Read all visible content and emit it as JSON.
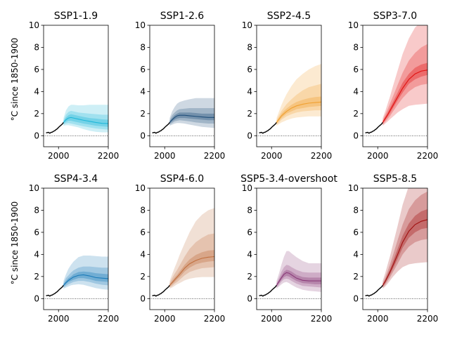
{
  "ylabel": "°C since 1850-1900",
  "chart_data": {
    "type": "line",
    "xlim": [
      1940,
      2200
    ],
    "ylim": [
      -1,
      10
    ],
    "xticks": [
      2000,
      2200
    ],
    "yticks": [
      0,
      2,
      4,
      6,
      8,
      10
    ],
    "zero_reference_line": true,
    "historical": {
      "x": [
        1950,
        1955,
        1960,
        1965,
        1970,
        1975,
        1980,
        1985,
        1990,
        1995,
        2000,
        2005,
        2010,
        2015,
        2020
      ],
      "y": [
        0.25,
        0.28,
        0.3,
        0.22,
        0.3,
        0.32,
        0.4,
        0.45,
        0.55,
        0.62,
        0.75,
        0.85,
        0.95,
        1.05,
        1.2
      ]
    },
    "panels": [
      {
        "title": "SSP1-1.9",
        "color": "#1fb7d8",
        "x": [
          2020,
          2030,
          2040,
          2050,
          2060,
          2080,
          2100,
          2125,
          2150,
          2175,
          2200
        ],
        "median": [
          1.2,
          1.45,
          1.6,
          1.65,
          1.6,
          1.5,
          1.4,
          1.3,
          1.2,
          1.12,
          1.1
        ],
        "p33": [
          1.1,
          1.25,
          1.35,
          1.35,
          1.3,
          1.2,
          1.1,
          1.0,
          0.9,
          0.85,
          0.8
        ],
        "p67": [
          1.3,
          1.65,
          1.85,
          1.95,
          1.9,
          1.8,
          1.7,
          1.6,
          1.55,
          1.48,
          1.45
        ],
        "p17": [
          1.0,
          1.1,
          1.15,
          1.1,
          1.05,
          0.95,
          0.85,
          0.75,
          0.65,
          0.6,
          0.55
        ],
        "p83": [
          1.4,
          1.9,
          2.15,
          2.25,
          2.2,
          2.1,
          2.05,
          2.0,
          1.95,
          1.9,
          1.9
        ],
        "p05": [
          0.9,
          0.95,
          0.95,
          0.9,
          0.85,
          0.75,
          0.6,
          0.45,
          0.35,
          0.3,
          0.3
        ],
        "p95": [
          1.6,
          2.3,
          2.65,
          2.8,
          2.8,
          2.75,
          2.75,
          2.8,
          2.8,
          2.8,
          2.8
        ]
      },
      {
        "title": "SSP1-2.6",
        "color": "#1f4e79",
        "x": [
          2020,
          2030,
          2040,
          2050,
          2060,
          2080,
          2100,
          2125,
          2150,
          2175,
          2200
        ],
        "median": [
          1.2,
          1.45,
          1.65,
          1.8,
          1.85,
          1.85,
          1.8,
          1.75,
          1.7,
          1.65,
          1.65
        ],
        "p33": [
          1.1,
          1.3,
          1.45,
          1.55,
          1.6,
          1.6,
          1.55,
          1.5,
          1.45,
          1.4,
          1.4
        ],
        "p67": [
          1.3,
          1.6,
          1.85,
          2.0,
          2.1,
          2.1,
          2.1,
          2.05,
          2.0,
          2.0,
          2.0
        ],
        "p17": [
          1.0,
          1.15,
          1.3,
          1.35,
          1.4,
          1.35,
          1.3,
          1.2,
          1.15,
          1.1,
          1.1
        ],
        "p83": [
          1.4,
          1.85,
          2.1,
          2.3,
          2.4,
          2.45,
          2.5,
          2.5,
          2.5,
          2.5,
          2.5
        ],
        "p05": [
          0.9,
          1.0,
          1.1,
          1.15,
          1.15,
          1.1,
          1.0,
          0.9,
          0.8,
          0.75,
          0.7
        ],
        "p95": [
          1.6,
          2.2,
          2.6,
          2.9,
          3.05,
          3.2,
          3.3,
          3.4,
          3.4,
          3.4,
          3.4
        ]
      },
      {
        "title": "SSP2-4.5",
        "color": "#f0a030",
        "x": [
          2020,
          2030,
          2040,
          2050,
          2060,
          2080,
          2100,
          2125,
          2150,
          2175,
          2200
        ],
        "median": [
          1.2,
          1.5,
          1.8,
          2.0,
          2.2,
          2.5,
          2.7,
          2.85,
          2.95,
          3.0,
          3.05
        ],
        "p33": [
          1.1,
          1.35,
          1.6,
          1.8,
          2.0,
          2.2,
          2.4,
          2.5,
          2.6,
          2.65,
          2.7
        ],
        "p67": [
          1.3,
          1.65,
          2.0,
          2.25,
          2.45,
          2.8,
          3.05,
          3.25,
          3.4,
          3.5,
          3.55
        ],
        "p17": [
          1.0,
          1.2,
          1.45,
          1.6,
          1.75,
          1.95,
          2.1,
          2.2,
          2.25,
          2.3,
          2.3
        ],
        "p83": [
          1.4,
          1.85,
          2.25,
          2.55,
          2.85,
          3.3,
          3.7,
          4.1,
          4.4,
          4.55,
          4.7
        ],
        "p05": [
          0.9,
          1.05,
          1.2,
          1.3,
          1.4,
          1.55,
          1.65,
          1.7,
          1.75,
          1.75,
          1.75
        ],
        "p95": [
          1.6,
          2.2,
          2.8,
          3.3,
          3.75,
          4.5,
          5.1,
          5.6,
          6.0,
          6.3,
          6.5
        ]
      },
      {
        "title": "SSP3-7.0",
        "color": "#e01010",
        "x": [
          2020,
          2030,
          2040,
          2050,
          2060,
          2080,
          2100,
          2125,
          2150,
          2175,
          2200
        ],
        "median": [
          1.2,
          1.55,
          1.9,
          2.3,
          2.7,
          3.5,
          4.3,
          5.1,
          5.6,
          5.85,
          5.95
        ],
        "p33": [
          1.1,
          1.4,
          1.7,
          2.05,
          2.45,
          3.2,
          3.9,
          4.7,
          5.1,
          5.35,
          5.5
        ],
        "p67": [
          1.3,
          1.7,
          2.1,
          2.55,
          3.0,
          3.9,
          4.8,
          5.6,
          6.15,
          6.45,
          6.6
        ],
        "p17": [
          1.0,
          1.25,
          1.5,
          1.8,
          2.15,
          2.8,
          3.4,
          4.0,
          4.4,
          4.6,
          4.7
        ],
        "p83": [
          1.4,
          1.9,
          2.4,
          2.95,
          3.5,
          4.6,
          5.7,
          6.8,
          7.5,
          8.0,
          8.3
        ],
        "p05": [
          0.9,
          1.1,
          1.3,
          1.5,
          1.7,
          2.1,
          2.4,
          2.7,
          2.8,
          2.85,
          2.9
        ],
        "p95": [
          1.6,
          2.2,
          2.9,
          3.6,
          4.4,
          5.9,
          7.4,
          8.8,
          9.8,
          10.3,
          10.6
        ]
      },
      {
        "title": "SSP4-3.4",
        "color": "#1a7ab8",
        "x": [
          2020,
          2030,
          2040,
          2050,
          2060,
          2080,
          2100,
          2125,
          2150,
          2175,
          2200
        ],
        "median": [
          1.2,
          1.45,
          1.65,
          1.8,
          1.95,
          2.1,
          2.15,
          2.05,
          1.9,
          1.85,
          1.8
        ],
        "p33": [
          1.1,
          1.3,
          1.5,
          1.6,
          1.7,
          1.85,
          1.85,
          1.75,
          1.6,
          1.55,
          1.5
        ],
        "p67": [
          1.3,
          1.6,
          1.85,
          2.0,
          2.2,
          2.4,
          2.45,
          2.4,
          2.3,
          2.25,
          2.2
        ],
        "p17": [
          1.0,
          1.15,
          1.3,
          1.4,
          1.5,
          1.6,
          1.6,
          1.5,
          1.35,
          1.25,
          1.2
        ],
        "p83": [
          1.4,
          1.85,
          2.1,
          2.35,
          2.55,
          2.8,
          2.9,
          2.9,
          2.85,
          2.8,
          2.8
        ],
        "p05": [
          0.9,
          1.0,
          1.1,
          1.2,
          1.25,
          1.3,
          1.25,
          1.1,
          0.95,
          0.85,
          0.8
        ],
        "p95": [
          1.6,
          2.2,
          2.7,
          3.05,
          3.35,
          3.75,
          3.9,
          3.9,
          3.85,
          3.8,
          3.8
        ]
      },
      {
        "title": "SSP4-6.0",
        "color": "#c07040",
        "x": [
          2020,
          2030,
          2040,
          2050,
          2060,
          2080,
          2100,
          2125,
          2150,
          2175,
          2200
        ],
        "median": [
          1.2,
          1.45,
          1.7,
          1.95,
          2.2,
          2.75,
          3.15,
          3.45,
          3.65,
          3.75,
          3.8
        ],
        "p33": [
          1.1,
          1.3,
          1.5,
          1.75,
          1.95,
          2.45,
          2.8,
          3.1,
          3.25,
          3.35,
          3.4
        ],
        "p67": [
          1.3,
          1.6,
          1.9,
          2.15,
          2.45,
          3.05,
          3.55,
          3.95,
          4.2,
          4.35,
          4.4
        ],
        "p17": [
          1.0,
          1.15,
          1.35,
          1.5,
          1.7,
          2.1,
          2.4,
          2.6,
          2.75,
          2.8,
          2.85
        ],
        "p83": [
          1.4,
          1.85,
          2.25,
          2.6,
          3.0,
          3.8,
          4.5,
          5.1,
          5.5,
          5.8,
          5.9
        ],
        "p05": [
          0.9,
          1.0,
          1.15,
          1.3,
          1.4,
          1.65,
          1.8,
          1.9,
          1.95,
          1.95,
          1.95
        ],
        "p95": [
          1.6,
          2.2,
          2.8,
          3.35,
          3.95,
          5.0,
          6.0,
          7.0,
          7.6,
          8.0,
          8.2
        ]
      },
      {
        "title": "SSP5-3.4-overshoot",
        "color": "#8a3a78",
        "x": [
          2020,
          2030,
          2040,
          2050,
          2060,
          2070,
          2080,
          2100,
          2125,
          2150,
          2175,
          2200
        ],
        "median": [
          1.2,
          1.55,
          1.9,
          2.2,
          2.35,
          2.3,
          2.15,
          1.85,
          1.65,
          1.6,
          1.6,
          1.6
        ],
        "p33": [
          1.1,
          1.4,
          1.7,
          1.95,
          2.05,
          2.0,
          1.85,
          1.6,
          1.4,
          1.35,
          1.3,
          1.3
        ],
        "p67": [
          1.3,
          1.7,
          2.1,
          2.45,
          2.6,
          2.55,
          2.45,
          2.15,
          1.95,
          1.9,
          1.9,
          1.9
        ],
        "p17": [
          1.0,
          1.25,
          1.55,
          1.75,
          1.8,
          1.75,
          1.6,
          1.35,
          1.15,
          1.1,
          1.05,
          1.0
        ],
        "p83": [
          1.4,
          1.9,
          2.45,
          2.85,
          3.05,
          3.0,
          2.85,
          2.6,
          2.4,
          2.35,
          2.35,
          2.35
        ],
        "p05": [
          0.9,
          1.1,
          1.3,
          1.45,
          1.5,
          1.4,
          1.25,
          1.0,
          0.8,
          0.7,
          0.65,
          0.6
        ],
        "p95": [
          1.6,
          2.3,
          3.1,
          3.8,
          4.3,
          4.3,
          4.1,
          3.75,
          3.4,
          3.2,
          3.2,
          3.2
        ]
      },
      {
        "title": "SSP5-8.5",
        "color": "#a01010",
        "x": [
          2020,
          2030,
          2040,
          2050,
          2060,
          2080,
          2100,
          2125,
          2150,
          2175,
          2200
        ],
        "median": [
          1.2,
          1.55,
          2.0,
          2.45,
          2.95,
          4.0,
          5.1,
          6.1,
          6.7,
          7.0,
          7.15
        ],
        "p33": [
          1.1,
          1.4,
          1.8,
          2.2,
          2.65,
          3.6,
          4.6,
          5.5,
          6.0,
          6.3,
          6.4
        ],
        "p67": [
          1.3,
          1.7,
          2.2,
          2.7,
          3.3,
          4.5,
          5.7,
          6.8,
          7.5,
          7.9,
          8.1
        ],
        "p17": [
          1.0,
          1.25,
          1.6,
          1.95,
          2.35,
          3.15,
          4.0,
          4.7,
          5.1,
          5.3,
          5.4
        ],
        "p83": [
          1.4,
          1.9,
          2.5,
          3.15,
          3.85,
          5.3,
          6.7,
          8.1,
          8.9,
          9.4,
          9.7
        ],
        "p05": [
          0.9,
          1.1,
          1.35,
          1.65,
          1.95,
          2.45,
          2.85,
          3.1,
          3.2,
          3.25,
          3.3
        ],
        "p95": [
          1.6,
          2.3,
          3.1,
          3.9,
          4.8,
          6.6,
          8.5,
          10.2,
          11.2,
          11.8,
          12.2
        ]
      }
    ]
  }
}
